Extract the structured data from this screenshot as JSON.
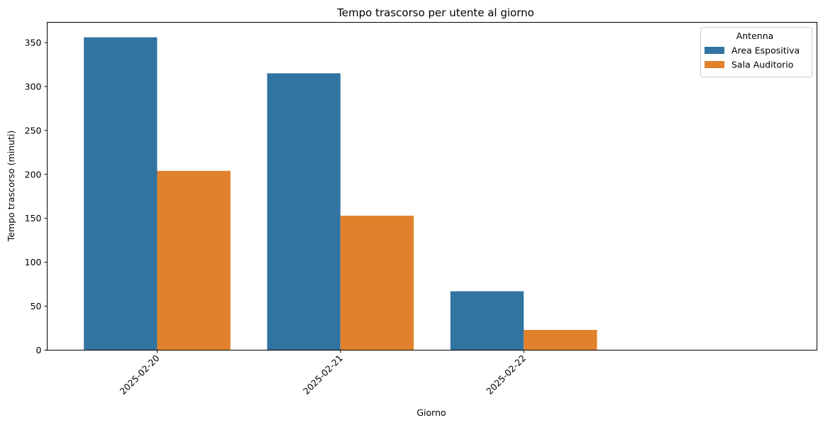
{
  "chart_data": {
    "type": "bar",
    "title": "Tempo trascorso per utente al giorno",
    "xlabel": "Giorno",
    "ylabel": "Tempo trascorso (minuti)",
    "categories": [
      "2025-02-20",
      "2025-02-21",
      "2025-02-22"
    ],
    "series": [
      {
        "name": "Area Espositiva",
        "color": "#3274a1",
        "values": [
          356,
          315,
          67
        ]
      },
      {
        "name": "Sala Auditorio",
        "color": "#e1812c",
        "values": [
          204,
          153,
          23
        ]
      }
    ],
    "ylim": [
      0,
      373
    ],
    "yticks": [
      0,
      50,
      100,
      150,
      200,
      250,
      300,
      350
    ],
    "grid": false,
    "legend": {
      "title": "Antenna",
      "position": "top-right"
    },
    "xtick_rotation": 45
  }
}
